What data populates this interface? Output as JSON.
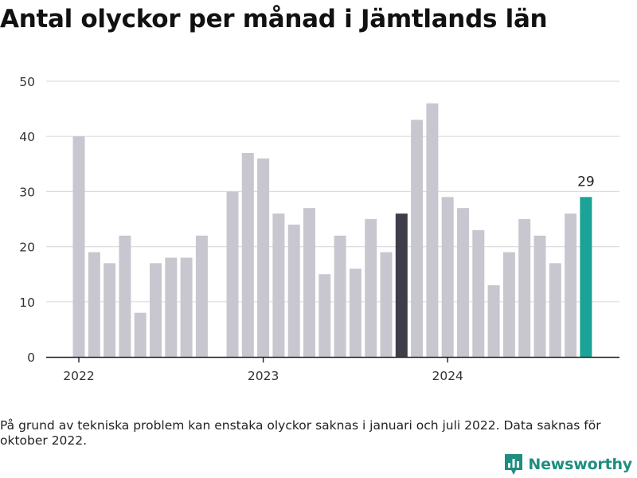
{
  "title": "Antal olyckor per månad i Jämtlands län",
  "note": "På grund av tekniska problem kan enstaka olyckor saknas i januari och juli 2022. Data saknas för oktober 2022.",
  "brand": {
    "name": "Newsworthy",
    "icon": "bar-chart-logo-icon"
  },
  "colors": {
    "bar": "#c8c7d0",
    "highlight_dark": "#3e3d4a",
    "highlight_latest": "#1aa396",
    "grid": "#dddddd",
    "axis": "#222222",
    "brand": "#1f8e80"
  },
  "chart_data": {
    "type": "bar",
    "title": "Antal olyckor per månad i Jämtlands län",
    "xlabel": "",
    "ylabel": "",
    "ylim": [
      0,
      50
    ],
    "yticks": [
      0,
      10,
      20,
      30,
      40,
      50
    ],
    "xticks": [
      {
        "label": "2022",
        "month": "2022-01"
      },
      {
        "label": "2023",
        "month": "2023-01"
      },
      {
        "label": "2024",
        "month": "2024-01"
      }
    ],
    "grid": true,
    "months": [
      "2022-01",
      "2022-02",
      "2022-03",
      "2022-04",
      "2022-05",
      "2022-06",
      "2022-07",
      "2022-08",
      "2022-09",
      "2022-10",
      "2022-11",
      "2022-12",
      "2023-01",
      "2023-02",
      "2023-03",
      "2023-04",
      "2023-05",
      "2023-06",
      "2023-07",
      "2023-08",
      "2023-09",
      "2023-10",
      "2023-11",
      "2023-12",
      "2024-01",
      "2024-02",
      "2024-03",
      "2024-04",
      "2024-05",
      "2024-06",
      "2024-07",
      "2024-08",
      "2024-09",
      "2024-10"
    ],
    "values": [
      40,
      19,
      17,
      22,
      8,
      17,
      18,
      18,
      22,
      null,
      30,
      37,
      36,
      26,
      24,
      27,
      15,
      22,
      16,
      25,
      19,
      26,
      43,
      46,
      29,
      27,
      23,
      13,
      19,
      25,
      22,
      17,
      26,
      29
    ],
    "highlight_dark": "2023-10",
    "highlight_latest": "2024-10",
    "data_labels": [
      {
        "month": "2024-10",
        "text": "29"
      }
    ]
  }
}
